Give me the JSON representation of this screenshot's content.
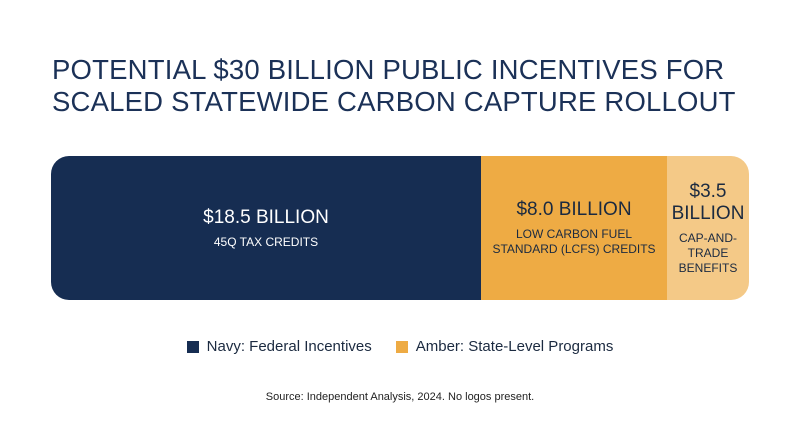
{
  "chart_data": {
    "type": "bar",
    "title_lines": [
      "POTENTIAL $30 BILLION PUBLIC INCENTIVES FOR",
      "SCALED STATEWIDE CARBON CAPTURE ROLLOUT"
    ],
    "segments": [
      {
        "value": 18.5,
        "label": "$18.5 BILLION",
        "label_lines": [
          "$18.5 BILLION"
        ],
        "desc_lines": [
          "45Q TAX CREDITS"
        ],
        "color": "#162d52",
        "text_color": "#ffffff"
      },
      {
        "value": 8.0,
        "label": "$8.0 BILLION",
        "label_lines": [
          "$8.0 BILLION"
        ],
        "desc_lines": [
          "LOW CARBON FUEL",
          "STANDARD (LCFS) CREDITS"
        ],
        "color": "#eeab44",
        "text_color": "#1b2a40"
      },
      {
        "value": 3.5,
        "label": "$3.5 BILLION",
        "label_lines": [
          "$3.5",
          "BILLION"
        ],
        "desc_lines": [
          "CAP-AND-",
          "TRADE",
          "BENEFITS"
        ],
        "color": "#f4c987",
        "text_color": "#1b2a40"
      }
    ],
    "total": 30,
    "unit": "billion USD",
    "legend": [
      {
        "label": "Navy: Federal Incentives",
        "color": "#162d52"
      },
      {
        "label": "Amber: State-Level Programs",
        "color": "#eeab44"
      }
    ],
    "legend_placement": "bottom"
  },
  "source": "Source: Independent Analysis, 2024. No logos present."
}
